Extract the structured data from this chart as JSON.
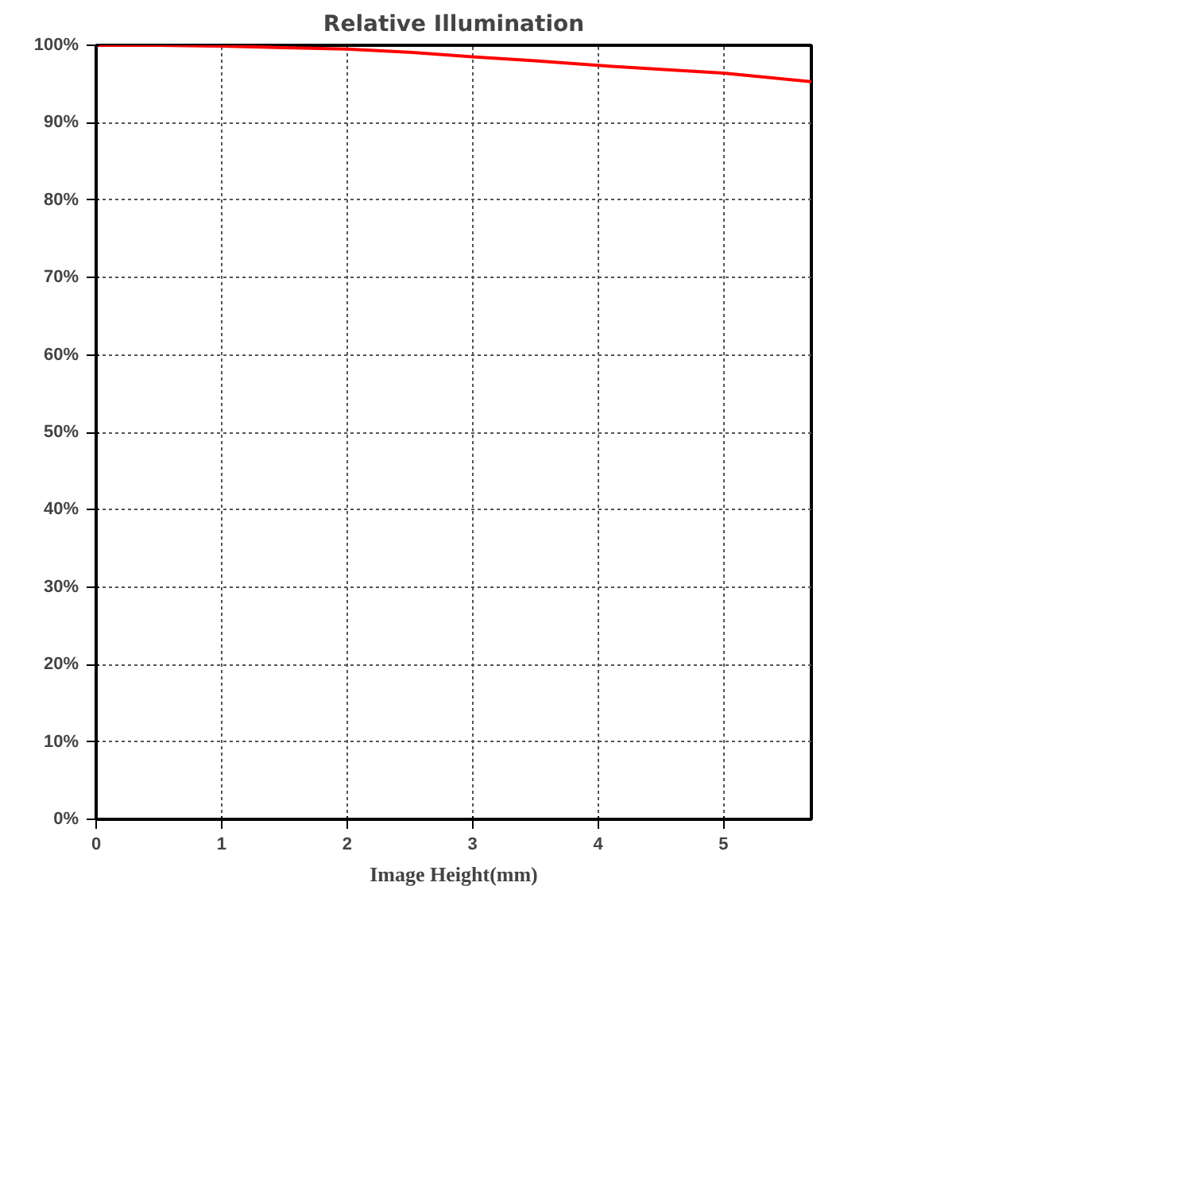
{
  "chart_data": {
    "type": "line",
    "title": "Relative Illumination",
    "xlabel": "Image Height(mm)",
    "x": [
      0,
      0.5,
      1,
      1.5,
      2,
      2.5,
      3,
      3.5,
      4,
      4.5,
      5,
      5.7
    ],
    "series": [
      {
        "color": "#ff0000",
        "values": [
          100,
          100,
          99.9,
          99.7,
          99.5,
          99.1,
          98.5,
          98.0,
          97.4,
          96.9,
          96.4,
          95.3
        ]
      }
    ],
    "xlim": [
      0,
      5.7
    ],
    "xticks": [
      0,
      1,
      2,
      3,
      4,
      5
    ],
    "ylim": [
      0,
      100
    ],
    "yticks": [
      {
        "value": 0,
        "label": "0%"
      },
      {
        "value": 10,
        "label": "10%"
      },
      {
        "value": 20,
        "label": "20%"
      },
      {
        "value": 30,
        "label": "30%"
      },
      {
        "value": 40,
        "label": "40%"
      },
      {
        "value": 50,
        "label": "50%"
      },
      {
        "value": 60,
        "label": "60%"
      },
      {
        "value": 70,
        "label": "70%"
      },
      {
        "value": 80,
        "label": "80%"
      },
      {
        "value": 90,
        "label": "90%"
      },
      {
        "value": 100,
        "label": "100%"
      }
    ],
    "grid": true,
    "marker": "none",
    "line_style": "solid"
  }
}
